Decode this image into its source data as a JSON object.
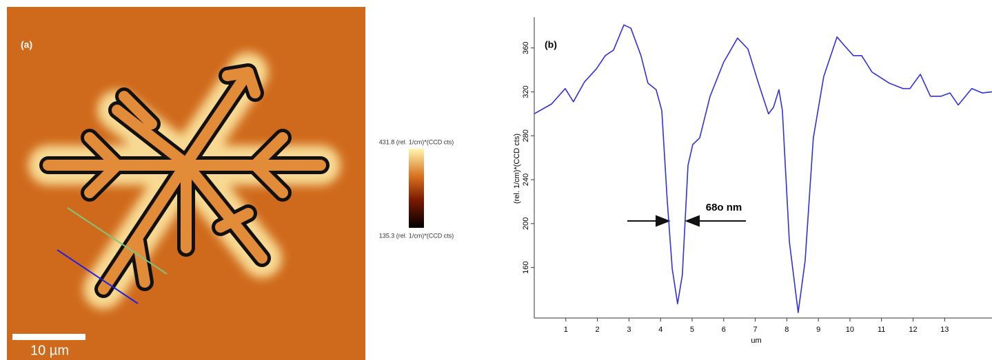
{
  "image_panel": {
    "label": "(a)",
    "scale_bar": "10 µm",
    "colorbar_max": "431.8 (rel. 1/cm)*(CCD cts)",
    "colorbar_min": "135.3 (rel. 1/cm)*(CCD cts)"
  },
  "chart_data": {
    "type": "line",
    "panel_label": "(b)",
    "x_label": "um",
    "y_label": "(rel. 1/cm)*(CCD cts)",
    "annotation": "68o nm",
    "x": [
      0,
      0.55,
      0.98,
      1.24,
      1.59,
      1.97,
      2.25,
      2.51,
      2.84,
      3.06,
      3.38,
      3.6,
      3.86,
      4.04,
      4.21,
      4.37,
      4.54,
      4.69,
      4.87,
      5.02,
      5.24,
      5.57,
      6.0,
      6.44,
      6.77,
      7.1,
      7.42,
      7.58,
      7.75,
      7.86,
      8.08,
      8.36,
      8.58,
      8.84,
      9.17,
      9.59,
      9.83,
      10.11,
      10.37,
      10.7,
      11.24,
      11.68,
      11.9,
      12.23,
      12.55,
      12.88,
      13.17,
      13.43,
      13.86,
      14.19,
      14.5
    ],
    "series": [
      {
        "color": "#2f2fe0",
        "values": [
          300,
          309,
          323,
          311,
          329,
          341,
          353,
          358,
          381,
          378,
          353,
          328,
          322,
          303,
          222,
          159,
          127,
          153,
          253,
          272,
          278,
          316,
          347,
          369,
          359,
          328,
          300,
          306,
          322,
          303,
          184,
          119,
          166,
          278,
          334,
          370,
          362,
          353,
          353,
          338,
          328,
          323,
          323,
          336,
          316,
          316,
          319,
          308,
          323,
          319,
          320
        ]
      }
    ],
    "xlim": [
      0,
      14.5
    ],
    "ylim": [
      114,
      388
    ],
    "xticks": [
      1,
      2,
      3,
      4,
      5,
      6,
      7,
      8,
      9,
      10,
      11,
      12,
      13
    ],
    "yticks": [
      160,
      200,
      240,
      280,
      320,
      360
    ]
  }
}
